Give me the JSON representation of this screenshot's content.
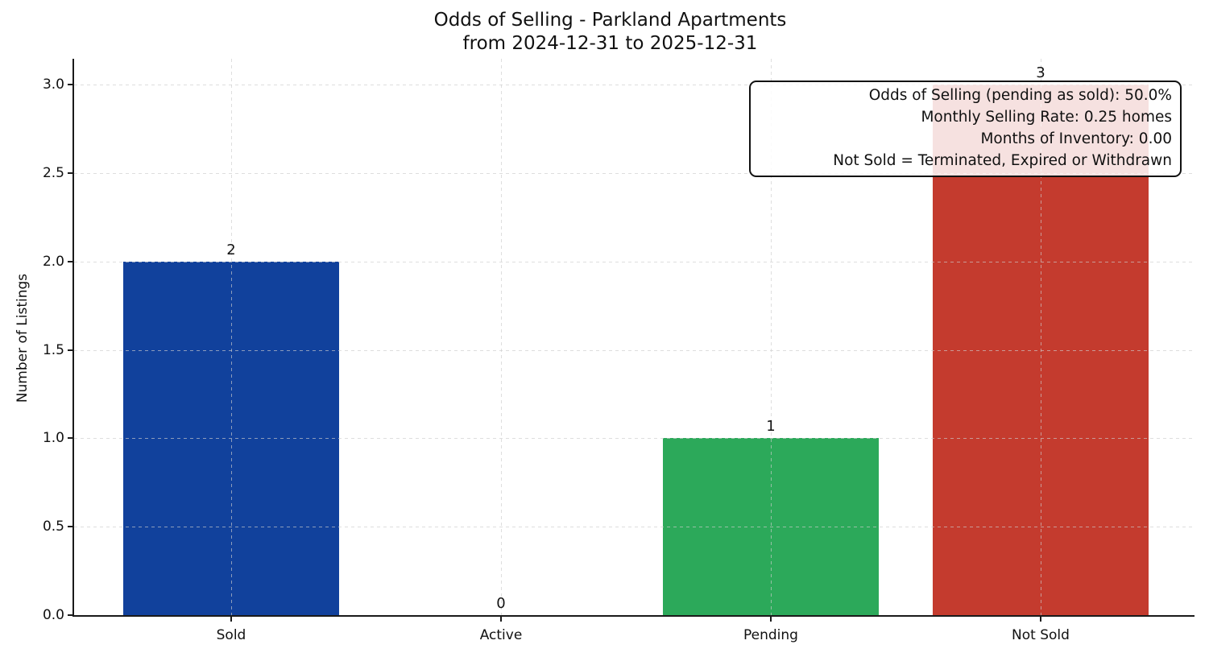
{
  "figure": {
    "title_line1": "Odds of Selling - Parkland Apartments",
    "title_line2": "from 2024-12-31 to 2025-12-31"
  },
  "annotation": {
    "lines": [
      "Odds of Selling (pending as sold): 50.0%",
      "Monthly Selling Rate: 0.25 homes",
      "Months of Inventory: 0.00",
      "Not Sold = Terminated, Expired or Withdrawn"
    ]
  },
  "chart_data": {
    "type": "bar",
    "title": "Odds of Selling - Parkland Apartments",
    "subtitle": "from 2024-12-31 to 2025-12-31",
    "categories": [
      "Sold",
      "Active",
      "Pending",
      "Not Sold"
    ],
    "values": [
      2,
      0,
      1,
      3
    ],
    "bar_labels": [
      "2",
      "0",
      "1",
      "3"
    ],
    "bar_colors": [
      "#11419C",
      null,
      "#2CA95A",
      "#C43B2E"
    ],
    "xlabel": "",
    "ylabel": "Number of Listings",
    "ylim": [
      0,
      3.15
    ],
    "y_ticks": [
      0,
      0.5,
      1,
      1.5,
      2,
      2.5,
      3
    ],
    "y_tick_labels": [
      "0.0",
      "0.5",
      "1.0",
      "1.5",
      "2.0",
      "2.5",
      "3.0"
    ],
    "grid": "both, dashed, drawn above bars",
    "legend": "none",
    "annotation_lines": [
      "Odds of Selling (pending as sold): 50.0%",
      "Monthly Selling Rate: 0.25 homes",
      "Months of Inventory: 0.00",
      "Not Sold = Terminated, Expired or Withdrawn"
    ]
  }
}
